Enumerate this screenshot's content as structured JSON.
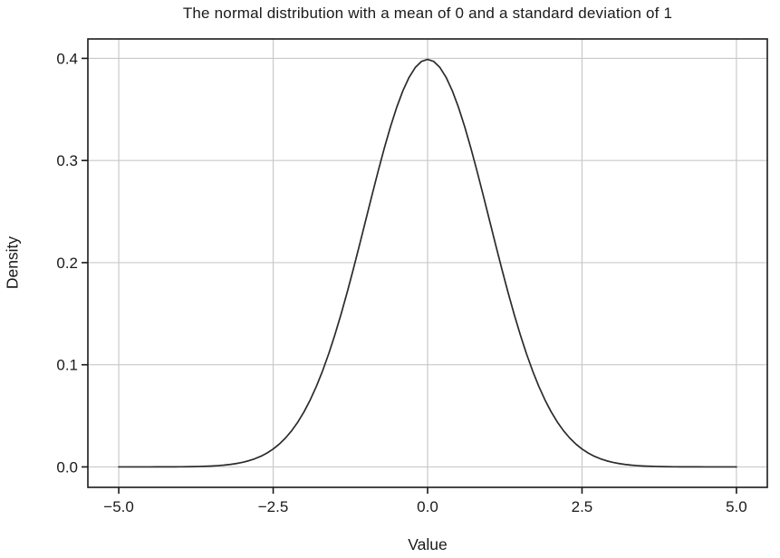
{
  "chart_data": {
    "type": "line",
    "title": "The normal distribution with a mean of 0 and a standard deviation of 1",
    "xlabel": "Value",
    "ylabel": "Density",
    "xlim": [
      -5.5,
      5.5
    ],
    "ylim": [
      -0.02,
      0.419
    ],
    "grid": true,
    "legend": false,
    "line_color": "#2b2b2b",
    "grid_color": "#c9c9c9",
    "axis_color": "#1a1a1a",
    "distribution": {
      "mean": 0,
      "standard_deviation": 1
    },
    "x_ticks": {
      "values": [
        -5,
        -2.5,
        0,
        2.5,
        5
      ],
      "labels": [
        "−5.0",
        "−2.5",
        "0.0",
        "2.5",
        "5.0"
      ]
    },
    "y_ticks": {
      "values": [
        0,
        0.1,
        0.2,
        0.3,
        0.4
      ],
      "labels": [
        "0.0",
        "0.1",
        "0.2",
        "0.3",
        "0.4"
      ]
    },
    "series": [
      {
        "x_start": -5,
        "x_step": 0.1,
        "x_end": 5,
        "y": [
          0.0,
          0.0,
          0.0,
          1e-05,
          1e-05,
          2e-05,
          3e-05,
          4e-05,
          6e-05,
          9e-05,
          0.00013,
          0.0002,
          0.00029,
          0.00043,
          0.00061,
          0.00087,
          0.00123,
          0.00172,
          0.00238,
          0.00327,
          0.00443,
          0.00595,
          0.00792,
          0.01042,
          0.01358,
          0.01753,
          0.02239,
          0.02833,
          0.03548,
          0.04398,
          0.05399,
          0.06562,
          0.07895,
          0.09405,
          0.11092,
          0.12952,
          0.14973,
          0.17137,
          0.19419,
          0.21785,
          0.24197,
          0.26609,
          0.28969,
          0.31225,
          0.33322,
          0.35207,
          0.36827,
          0.38139,
          0.39104,
          0.39695,
          0.39894,
          0.39695,
          0.39104,
          0.38139,
          0.36827,
          0.35207,
          0.33322,
          0.31225,
          0.28969,
          0.26609,
          0.24197,
          0.21785,
          0.19419,
          0.17137,
          0.14973,
          0.12952,
          0.11092,
          0.09405,
          0.07895,
          0.06562,
          0.05399,
          0.04398,
          0.03548,
          0.02833,
          0.02239,
          0.01753,
          0.01358,
          0.01042,
          0.00792,
          0.00595,
          0.00443,
          0.00327,
          0.00238,
          0.00172,
          0.00123,
          0.00087,
          0.00061,
          0.00043,
          0.00029,
          0.0002,
          0.00013,
          9e-05,
          6e-05,
          4e-05,
          3e-05,
          2e-05,
          1e-05,
          1e-05,
          0.0,
          0.0,
          0.0
        ]
      }
    ]
  }
}
